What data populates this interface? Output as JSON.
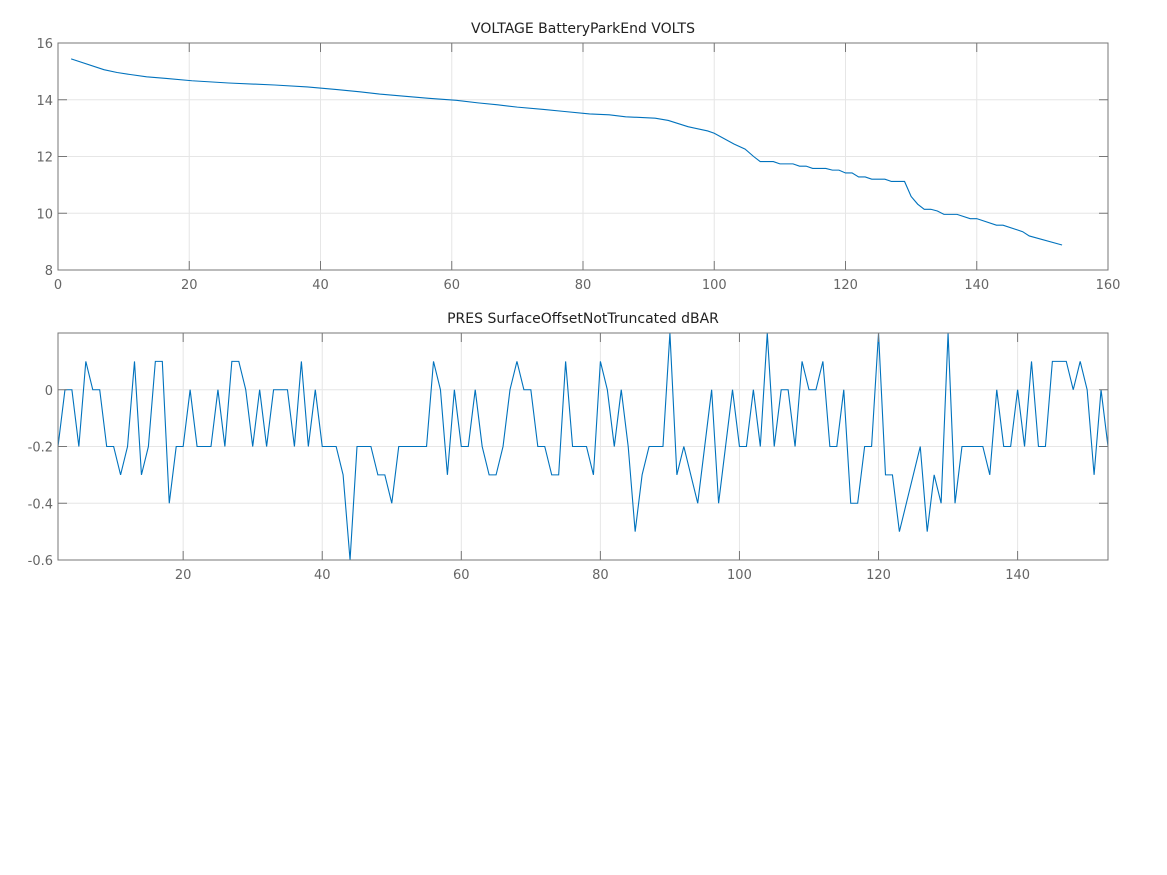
{
  "chart_data": [
    {
      "type": "line",
      "title": "VOLTAGE BatteryParkEnd VOLTS",
      "xlabel": "",
      "ylabel": "",
      "xlim": [
        0,
        160
      ],
      "ylim": [
        8,
        16
      ],
      "xticks": [
        0,
        20,
        40,
        60,
        80,
        100,
        120,
        140,
        160
      ],
      "yticks": [
        8,
        10,
        12,
        14,
        16
      ],
      "grid": true,
      "color": "#0072BD",
      "x": [
        2,
        7,
        9,
        11,
        13.5,
        16.5,
        20.4,
        26,
        33,
        38,
        42.5,
        46,
        49,
        52.5,
        56.5,
        60.7,
        64,
        67,
        70,
        74,
        77,
        81,
        84,
        86.5,
        91,
        93,
        96,
        99,
        100,
        103,
        104.7,
        106,
        107,
        109,
        110,
        112,
        113,
        114,
        115,
        117,
        118,
        119,
        120,
        121,
        122,
        123,
        124,
        126,
        127,
        129,
        130,
        131,
        132,
        133,
        134,
        135,
        137,
        139,
        140,
        143,
        144,
        147,
        148,
        153
      ],
      "y": [
        15.44,
        15.06,
        14.96,
        14.89,
        14.81,
        14.75,
        14.67,
        14.59,
        14.52,
        14.45,
        14.36,
        14.28,
        14.2,
        14.13,
        14.05,
        13.98,
        13.89,
        13.82,
        13.74,
        13.66,
        13.59,
        13.5,
        13.47,
        13.4,
        13.35,
        13.27,
        13.05,
        12.9,
        12.82,
        12.44,
        12.26,
        12.0,
        11.82,
        11.82,
        11.74,
        11.74,
        11.66,
        11.66,
        11.58,
        11.58,
        11.52,
        11.52,
        11.42,
        11.42,
        11.28,
        11.28,
        11.2,
        11.2,
        11.12,
        11.12,
        10.59,
        10.32,
        10.14,
        10.14,
        10.08,
        9.96,
        9.96,
        9.81,
        9.81,
        9.58,
        9.58,
        9.35,
        9.2,
        8.88
      ]
    },
    {
      "type": "line",
      "title": "PRES SurfaceOffsetNotTruncated dBAR",
      "xlabel": "",
      "ylabel": "",
      "xlim": [
        2,
        153
      ],
      "ylim": [
        -0.6,
        0.2
      ],
      "xticks": [
        20,
        40,
        60,
        80,
        100,
        120,
        140
      ],
      "yticks": [
        -0.6,
        -0.4,
        -0.2,
        0
      ],
      "grid": true,
      "color": "#0072BD",
      "x_start": 2,
      "y": [
        -0.2,
        0,
        0,
        -0.2,
        0.1,
        0,
        0,
        -0.2,
        -0.2,
        -0.3,
        -0.2,
        0.1,
        -0.3,
        -0.2,
        0.1,
        0.1,
        -0.4,
        -0.2,
        -0.2,
        0,
        -0.2,
        -0.2,
        -0.2,
        0,
        -0.2,
        0.1,
        0.1,
        0,
        -0.2,
        0,
        -0.2,
        0,
        0,
        0,
        -0.2,
        0.1,
        -0.2,
        0,
        -0.2,
        -0.2,
        -0.2,
        -0.3,
        -0.6,
        -0.2,
        -0.2,
        -0.2,
        -0.3,
        -0.3,
        -0.4,
        -0.2,
        -0.2,
        -0.2,
        -0.2,
        -0.2,
        0.1,
        0,
        -0.3,
        0,
        -0.2,
        -0.2,
        0,
        -0.2,
        -0.3,
        -0.3,
        -0.2,
        0,
        0.1,
        0,
        0,
        -0.2,
        -0.2,
        -0.3,
        -0.3,
        0.1,
        -0.2,
        -0.2,
        -0.2,
        -0.3,
        0.1,
        0,
        -0.2,
        0,
        -0.2,
        -0.5,
        -0.3,
        -0.2,
        -0.2,
        -0.2,
        0.2,
        -0.3,
        -0.2,
        -0.3,
        -0.4,
        -0.2,
        0,
        -0.4,
        -0.2,
        0,
        -0.2,
        -0.2,
        0,
        -0.2,
        0.2,
        -0.2,
        0,
        0,
        -0.2,
        0.1,
        0,
        0,
        0.1,
        -0.2,
        -0.2,
        0,
        -0.4,
        -0.4,
        -0.2,
        -0.2,
        0.2,
        -0.3,
        -0.3,
        -0.5,
        -0.4,
        -0.3,
        -0.2,
        -0.5,
        -0.3,
        -0.4,
        0.2,
        -0.4,
        -0.2,
        -0.2,
        -0.2,
        -0.2,
        -0.3,
        0,
        -0.2,
        -0.2,
        0,
        -0.2,
        0.1,
        -0.2,
        -0.2,
        0.1,
        0.1,
        0.1,
        0,
        0.1,
        0,
        -0.3,
        0,
        -0.2
      ]
    }
  ]
}
